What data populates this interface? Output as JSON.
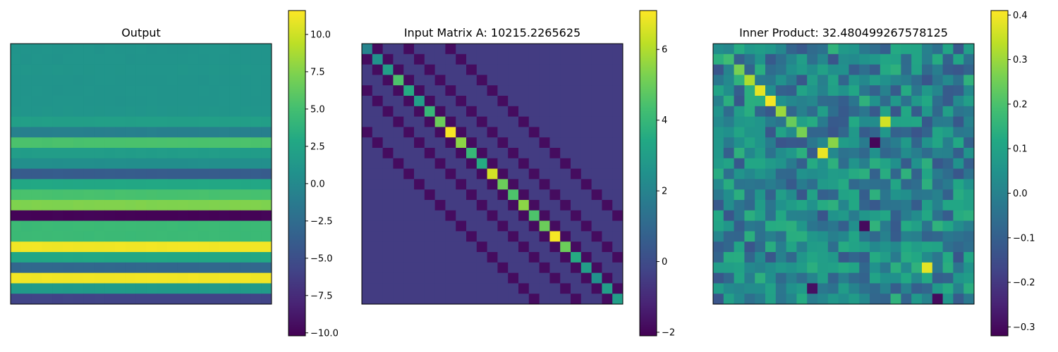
{
  "chart_data": [
    {
      "type": "heatmap",
      "title": "Output",
      "rows": 25,
      "cols": 25,
      "colorbar": {
        "vmin": -10.2,
        "vmax": 11.6,
        "ticks": [
          10.0,
          7.5,
          5.0,
          2.5,
          0.0,
          -2.5,
          -5.0,
          -7.5,
          -10.0
        ],
        "tick_labels": [
          "10.0",
          "7.5",
          "5.0",
          "2.5",
          "0.0",
          "−2.5",
          "−5.0",
          "−7.5",
          "−10.0"
        ]
      },
      "row_values": [
        1.0,
        1.0,
        1.1,
        1.0,
        1.0,
        1.0,
        1.1,
        2.0,
        -0.8,
        5.3,
        1.8,
        0.5,
        -3.9,
        2.8,
        5.2,
        7.4,
        -10.0,
        4.5,
        4.5,
        11.2,
        2.8,
        -2.9,
        11.2,
        1.6,
        -5.8
      ],
      "notes": "Each row is a nearly constant horizontal band"
    },
    {
      "type": "heatmap",
      "title": "Input Matrix A: 10215.2265625",
      "rows": 25,
      "cols": 25,
      "colorbar": {
        "vmin": -2.1,
        "vmax": 7.1,
        "ticks": [
          6,
          4,
          2,
          0,
          -2
        ],
        "tick_labels": [
          "6",
          "4",
          "2",
          "0",
          "−2"
        ]
      },
      "background": -0.5,
      "diagonal": [
        2.0,
        2.5,
        3.0,
        4.5,
        3.5,
        3.0,
        4.0,
        5.0,
        7.0,
        5.5,
        4.0,
        3.5,
        6.5,
        5.0,
        4.5,
        5.5,
        4.5,
        5.0,
        7.0,
        5.0,
        3.5,
        3.0,
        2.5,
        3.0,
        3.0
      ],
      "offdiag_value": -1.8,
      "offdiag_bands": [
        -1,
        1,
        4,
        -4,
        8,
        -8
      ]
    },
    {
      "type": "heatmap",
      "title": "Inner Product: 32.480499267578125",
      "rows": 25,
      "cols": 25,
      "colorbar": {
        "vmin": -0.32,
        "vmax": 0.41,
        "ticks": [
          0.4,
          0.3,
          0.2,
          0.1,
          0.0,
          -0.1,
          -0.2,
          -0.3
        ],
        "tick_labels": [
          "0.4",
          "0.3",
          "0.2",
          "0.1",
          "0.0",
          "−0.1",
          "−0.2",
          "−0.3"
        ]
      },
      "diagonal_peaks": [
        0.18,
        0.26,
        0.32,
        0.38,
        0.4,
        0.3,
        0.24
      ],
      "hotspots": [
        {
          "row": 7,
          "col": 16,
          "value": 0.36
        },
        {
          "row": 8,
          "col": 8,
          "value": 0.26
        },
        {
          "row": 9,
          "col": 15,
          "value": -0.31
        },
        {
          "row": 10,
          "col": 10,
          "value": 0.39
        },
        {
          "row": 9,
          "col": 11,
          "value": 0.28
        },
        {
          "row": 17,
          "col": 14,
          "value": -0.3
        },
        {
          "row": 21,
          "col": 20,
          "value": 0.38
        },
        {
          "row": 23,
          "col": 9,
          "value": -0.29
        },
        {
          "row": 24,
          "col": 21,
          "value": -0.3
        }
      ],
      "noise_range": [
        -0.15,
        0.18
      ]
    }
  ]
}
